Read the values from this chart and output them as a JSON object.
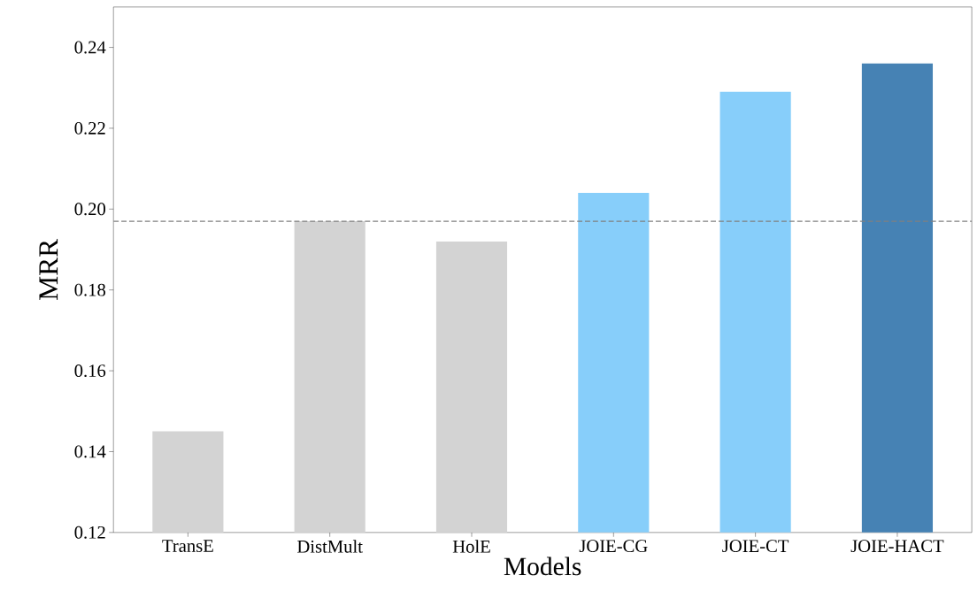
{
  "chart_data": {
    "type": "bar",
    "xlabel": "Models",
    "ylabel": "MRR",
    "categories": [
      "TransE",
      "DistMult",
      "HolE",
      "JOIE-CG",
      "JOIE-CT",
      "JOIE-HACT"
    ],
    "values": [
      0.145,
      0.197,
      0.192,
      0.204,
      0.229,
      0.236
    ],
    "colors": [
      "#d3d3d3",
      "#d3d3d3",
      "#d3d3d3",
      "#87cefa",
      "#87cefa",
      "#4682b4"
    ],
    "ylim": [
      0.12,
      0.25
    ],
    "yticks": [
      0.12,
      0.14,
      0.16,
      0.18,
      {
        "value": 0.2,
        "label": "0.20"
      },
      0.22,
      0.24
    ],
    "ref_lines": [
      {
        "axis": "y",
        "value": 0.197,
        "color": "#808080",
        "line_style": "dashed"
      }
    ],
    "grid": false
  }
}
